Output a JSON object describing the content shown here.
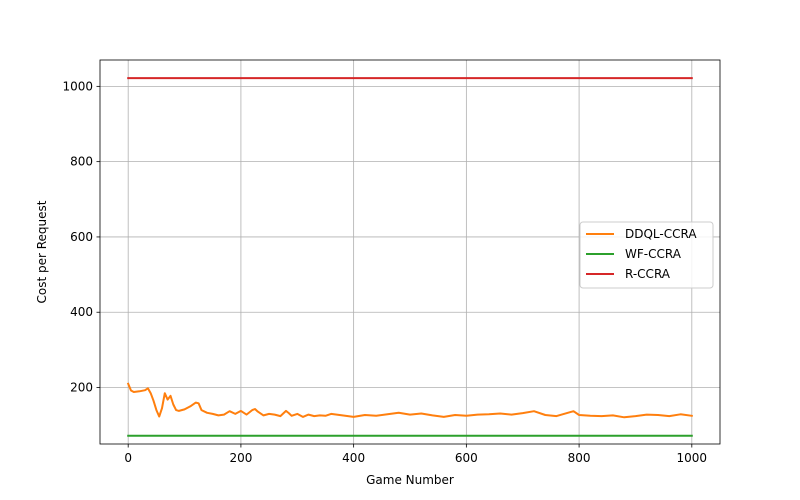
{
  "chart_data": {
    "type": "line",
    "title": "",
    "xlabel": "Game Number",
    "ylabel": "Cost per Request",
    "xlim": [
      -50,
      1050
    ],
    "ylim": [
      50,
      1070
    ],
    "xticks": [
      0,
      200,
      400,
      600,
      800,
      1000
    ],
    "yticks": [
      200,
      400,
      600,
      800,
      1000
    ],
    "grid": true,
    "legend_position": "center-right",
    "series": [
      {
        "name": "DDQL-CCRA",
        "color": "#ff7f0e",
        "x": [
          0,
          5,
          10,
          20,
          30,
          35,
          40,
          45,
          50,
          55,
          60,
          65,
          70,
          75,
          80,
          85,
          90,
          100,
          110,
          120,
          125,
          130,
          140,
          150,
          160,
          170,
          180,
          190,
          200,
          210,
          220,
          225,
          230,
          240,
          250,
          260,
          270,
          280,
          285,
          290,
          300,
          310,
          320,
          330,
          340,
          350,
          360,
          380,
          400,
          420,
          440,
          460,
          480,
          500,
          520,
          540,
          560,
          580,
          600,
          620,
          640,
          660,
          680,
          700,
          720,
          740,
          760,
          780,
          790,
          800,
          820,
          840,
          860,
          880,
          900,
          920,
          940,
          960,
          980,
          1000
        ],
        "y": [
          210,
          192,
          188,
          190,
          193,
          198,
          185,
          165,
          140,
          123,
          145,
          185,
          168,
          178,
          155,
          140,
          138,
          142,
          150,
          160,
          158,
          140,
          133,
          130,
          126,
          128,
          137,
          130,
          138,
          128,
          140,
          143,
          136,
          126,
          130,
          128,
          124,
          138,
          132,
          125,
          130,
          122,
          128,
          124,
          126,
          125,
          130,
          126,
          122,
          127,
          125,
          129,
          133,
          128,
          131,
          126,
          122,
          127,
          125,
          128,
          129,
          131,
          128,
          132,
          137,
          127,
          124,
          133,
          137,
          127,
          125,
          124,
          126,
          121,
          124,
          128,
          127,
          124,
          129,
          125
        ]
      },
      {
        "name": "WF-CCRA",
        "color": "#2ca02c",
        "x": [
          0,
          1000
        ],
        "y": [
          72,
          72
        ]
      },
      {
        "name": "R-CCRA",
        "color": "#d62728",
        "x": [
          0,
          1000
        ],
        "y": [
          1022,
          1022
        ]
      }
    ]
  }
}
